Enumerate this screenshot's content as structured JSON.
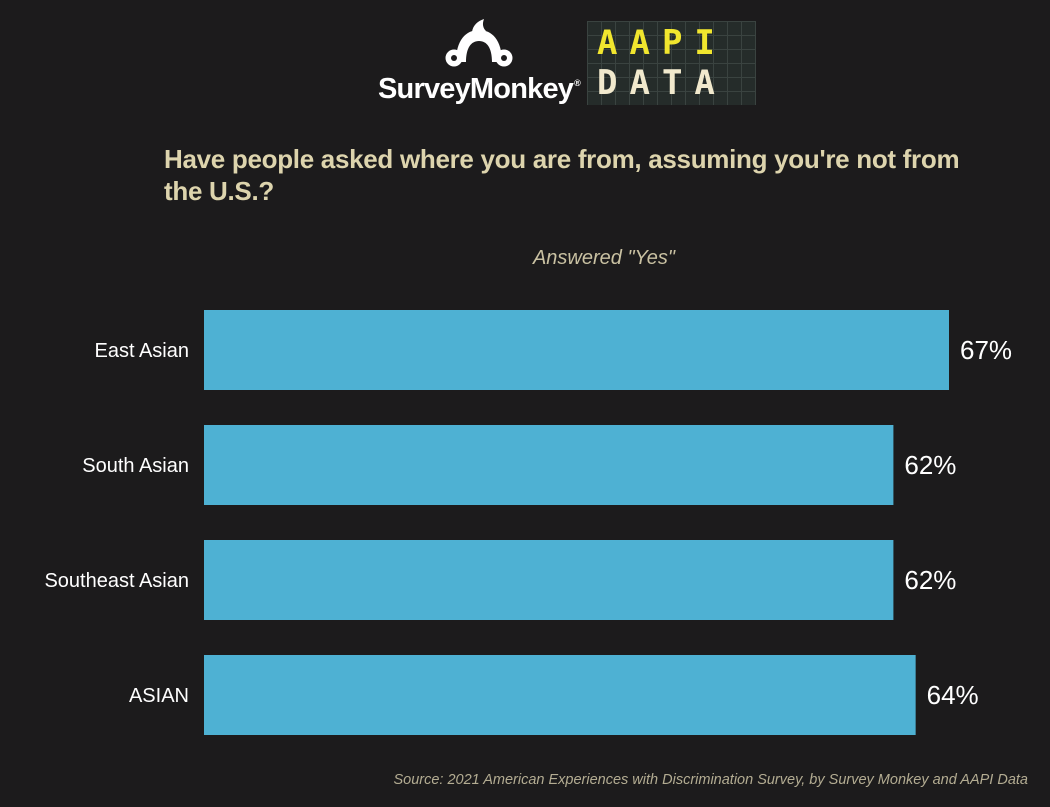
{
  "logos": {
    "surveymonkey": {
      "name": "SurveyMonkey",
      "mark": "®"
    },
    "aapi_data": {
      "line1": "AAPI",
      "line2": "DATA"
    }
  },
  "colors": {
    "background": "#1c1b1c",
    "bar": "#4eb1d3",
    "question": "#ddd4ad",
    "labels": "#ffffff"
  },
  "chart_data": {
    "type": "bar",
    "orientation": "horizontal",
    "title": "Have people asked where you are from, assuming you're not from the U.S.?",
    "subtitle": "Answered \"Yes\"",
    "categories": [
      "East Asian",
      "South Asian",
      "Southeast Asian",
      "ASIAN"
    ],
    "values": [
      67,
      62,
      62,
      64
    ],
    "value_labels": [
      "67%",
      "62%",
      "62%",
      "64%"
    ],
    "unit": "%",
    "xlim": [
      0,
      67
    ],
    "grid": false,
    "legend": "none",
    "source": "Source: 2021 American Experiences with Discrimination Survey, by Survey Monkey and AAPI Data"
  }
}
